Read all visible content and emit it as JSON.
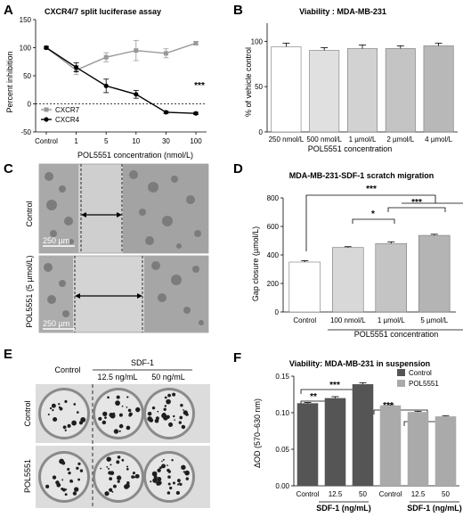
{
  "panels": {
    "A": {
      "label": "A",
      "title": "CXCR4/7  split luciferase assay",
      "ylabel": "Percent inhibition",
      "xlabel": "POL5551 concentration (nmol/L)",
      "significance": "***"
    },
    "B": {
      "label": "B",
      "title": "Viability : MDA-MB-231",
      "ylabel": "% of vehicle control",
      "xlabel": "POL5551 concentration"
    },
    "C": {
      "label": "C",
      "rows": [
        "Control",
        "POL5551 (5 µmol/L)"
      ],
      "scalebar": "250 µm"
    },
    "D": {
      "label": "D",
      "title": "MDA-MB-231-SDF-1 scratch migration",
      "ylabel": "Gap closure (µmol/L)",
      "xlabel": "POL5551 concentration",
      "significance": [
        "***",
        "*",
        "***"
      ]
    },
    "E": {
      "label": "E",
      "col_control": "Control",
      "col_sdf": "SDF-1",
      "col_low": "12.5 ng/mL",
      "col_high": "50 ng/mL",
      "rows": [
        "Control",
        "POL5551"
      ]
    },
    "F": {
      "label": "F",
      "title": "Viability: MDA-MB-231 in suspension",
      "ylabel": "ΔOD (570–630 nm)",
      "group_label": "SDF-1 (ng/mL)",
      "significance": [
        "***",
        "**",
        "***",
        "*"
      ]
    }
  },
  "chart_data": [
    {
      "panel": "A",
      "type": "line",
      "title": "CXCR4/7  split luciferase assay",
      "xlabel": "POL5551 concentration (nmol/L)",
      "ylabel": "Percent inhibition",
      "categories": [
        "Control",
        "1",
        "5",
        "10",
        "30",
        "100"
      ],
      "ylim": [
        -50,
        150
      ],
      "yticks": [
        -50,
        0,
        50,
        100,
        150
      ],
      "series": [
        {
          "name": "CXCR7",
          "values": [
            100,
            60,
            83,
            95,
            90,
            108
          ],
          "errors": [
            2,
            8,
            8,
            18,
            8,
            3
          ],
          "color": "#999999"
        },
        {
          "name": "CXCR4",
          "values": [
            100,
            65,
            32,
            17,
            -15,
            -17
          ],
          "errors": [
            2,
            8,
            12,
            7,
            2,
            2
          ],
          "color": "#000000"
        }
      ],
      "legend": "bottom-left"
    },
    {
      "panel": "B",
      "type": "bar",
      "title": "Viability : MDA-MB-231",
      "xlabel": "POL5551 concentration",
      "ylabel": "% of vehicle control",
      "categories": [
        "250 nmol/L",
        "500 nmol/L",
        "1 µmol/L",
        "2 µmol/L",
        "4 µmol/L"
      ],
      "values": [
        94,
        90,
        92,
        92,
        95
      ],
      "errors": [
        4,
        3,
        4,
        3,
        3
      ],
      "colors": [
        "#ffffff",
        "#e0e0e0",
        "#d2d2d2",
        "#c4c4c4",
        "#b8b8b8"
      ],
      "ylim": [
        0,
        120
      ],
      "yticks": [
        0,
        50,
        100
      ]
    },
    {
      "panel": "D",
      "type": "bar",
      "title": "MDA-MB-231-SDF-1 scratch migration",
      "xlabel": "POL5551 concentration",
      "ylabel": "Gap closure (µmol/L)",
      "categories": [
        "Control",
        "100 nmol/L",
        "1 µmol/L",
        "5 µmol/L"
      ],
      "values": [
        350,
        452,
        480,
        537
      ],
      "errors": [
        10,
        6,
        12,
        8
      ],
      "colors": [
        "#ffffff",
        "#d8d8d8",
        "#c4c4c4",
        "#b4b4b4"
      ],
      "ylim": [
        0,
        800
      ],
      "yticks": [
        0,
        200,
        400,
        600,
        800
      ]
    },
    {
      "panel": "F",
      "type": "bar",
      "title": "Viability: MDA-MB-231 in suspension",
      "ylabel": "ΔOD (570–630 nm)",
      "categories": [
        "Control",
        "12.5",
        "50",
        "Control",
        "12.5",
        "50"
      ],
      "values": [
        0.113,
        0.12,
        0.139,
        0.11,
        0.101,
        0.095
      ],
      "errors": [
        0.001,
        0.002,
        0.002,
        0.001,
        0.001,
        0.001
      ],
      "series": [
        {
          "name": "Control",
          "color": "#555555"
        },
        {
          "name": "POL5551",
          "color": "#aaaaaa"
        }
      ],
      "ylim": [
        0,
        0.15
      ],
      "yticks": [
        0.0,
        0.05,
        0.1,
        0.15
      ],
      "legend": "top-right"
    }
  ]
}
